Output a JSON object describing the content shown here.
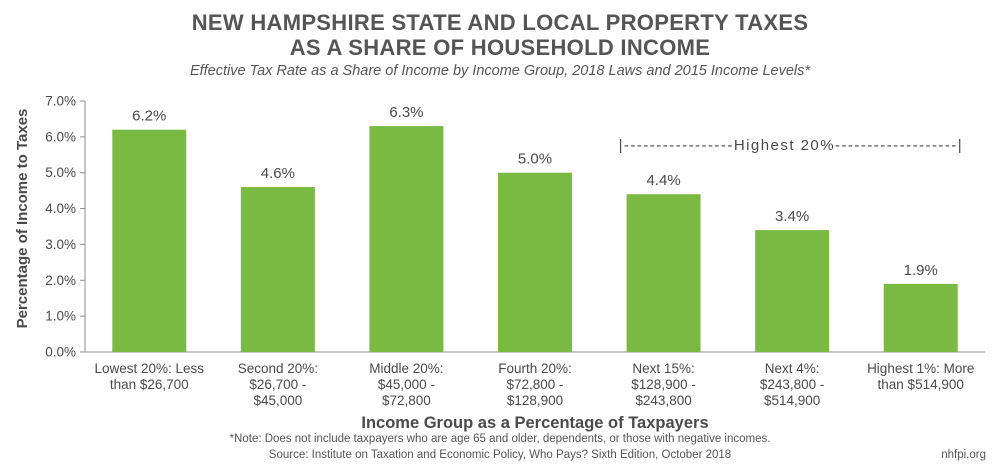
{
  "header": {
    "title_line1": "NEW HAMPSHIRE STATE AND LOCAL PROPERTY TAXES",
    "title_line2": "AS A SHARE OF HOUSEHOLD INCOME",
    "subtitle": "Effective Tax Rate as a Share of Income by Income Group, 2018 Laws and 2015 Income Levels*"
  },
  "chart_data": {
    "type": "bar",
    "categories": [
      [
        "Lowest 20%: Less",
        "than $26,700"
      ],
      [
        "Second 20%:",
        "$26,700 -",
        "$45,000"
      ],
      [
        "Middle 20%:",
        "$45,000 -",
        "$72,800"
      ],
      [
        "Fourth 20%:",
        "$72,800 -",
        "$128,900"
      ],
      [
        "Next 15%:",
        "$128,900 -",
        "$243,800"
      ],
      [
        "Next 4%:",
        "$243,800 -",
        "$514,900"
      ],
      [
        "Highest 1%: More",
        "than $514,900"
      ]
    ],
    "values": [
      6.2,
      4.6,
      6.3,
      5.0,
      4.4,
      3.4,
      1.9
    ],
    "data_labels": [
      "6.2%",
      "4.6%",
      "6.3%",
      "5.0%",
      "4.4%",
      "3.4%",
      "1.9%"
    ],
    "ylim": [
      0,
      7
    ],
    "yticks": [
      0,
      1,
      2,
      3,
      4,
      5,
      6,
      7
    ],
    "ytick_labels": [
      "0.0%",
      "1.0%",
      "2.0%",
      "3.0%",
      "4.0%",
      "5.0%",
      "6.0%",
      "7.0%"
    ],
    "xlabel": "Income Group as a Percentage of Taxpayers",
    "ylabel": "Percentage of Income to Taxes",
    "bar_color": "#7aba43",
    "grid": false,
    "annotation": {
      "text": "|-----------------Highest 20%-------------------|",
      "spans_categories": [
        4,
        6
      ]
    }
  },
  "footer": {
    "note": "*Note: Does not include taxpayers who are age 65 and older, dependents, or those with negative incomes.",
    "source": "Source: Institute on Taxation and Economic Policy, Who Pays? Sixth Edition, October 2018",
    "credit": "nhfpi.org"
  }
}
